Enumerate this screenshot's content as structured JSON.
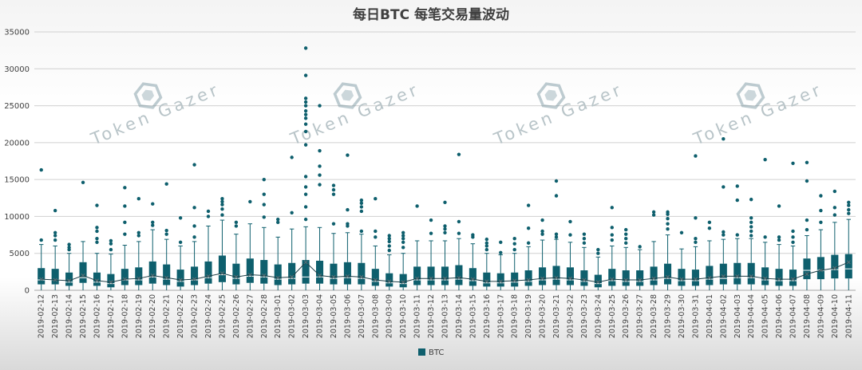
{
  "chart_data": {
    "type": "box",
    "title": "每日BTC 每笔交易量波动",
    "xlabel": "",
    "ylabel": "",
    "ylim": [
      0,
      35000
    ],
    "yticks": [
      0,
      5000,
      10000,
      15000,
      20000,
      25000,
      30000,
      35000
    ],
    "grid": "horizontal",
    "legend": {
      "position": "bottom",
      "entries": [
        "BTC"
      ]
    },
    "colors": {
      "series": "#0e5f6d",
      "gridline": "#d0d0d0",
      "text": "#404040",
      "watermark": "#b8c4c8"
    },
    "watermark": "Token Gazer",
    "series": [
      {
        "name": "BTC",
        "categories": [
          "2019-02-12",
          "2019-02-13",
          "2019-02-14",
          "2019-02-15",
          "2019-02-16",
          "2019-02-17",
          "2019-02-18",
          "2019-02-19",
          "2019-02-20",
          "2019-02-21",
          "2019-02-22",
          "2019-02-23",
          "2019-02-24",
          "2019-02-25",
          "2019-02-26",
          "2019-02-27",
          "2019-02-28",
          "2019-03-01",
          "2019-03-02",
          "2019-03-03",
          "2019-03-04",
          "2019-03-05",
          "2019-03-06",
          "2019-03-07",
          "2019-03-08",
          "2019-03-09",
          "2019-03-10",
          "2019-03-11",
          "2019-03-12",
          "2019-03-13",
          "2019-03-14",
          "2019-03-15",
          "2019-03-16",
          "2019-03-17",
          "2019-03-18",
          "2019-03-19",
          "2019-03-20",
          "2019-03-21",
          "2019-03-22",
          "2019-03-23",
          "2019-03-24",
          "2019-03-25",
          "2019-03-26",
          "2019-03-27",
          "2019-03-28",
          "2019-03-29",
          "2019-03-30",
          "2019-03-31",
          "2019-04-01",
          "2019-04-02",
          "2019-04-03",
          "2019-04-04",
          "2019-04-05",
          "2019-04-06",
          "2019-04-07",
          "2019-04-08",
          "2019-04-09",
          "2019-04-10",
          "2019-04-11"
        ],
        "boxes": [
          {
            "q1": 800,
            "median": 1400,
            "mean": 1500,
            "q3": 3000,
            "whisker_high": 6200,
            "outliers": [
              6800,
              16300
            ]
          },
          {
            "q1": 800,
            "median": 1400,
            "mean": 1400,
            "q3": 2900,
            "whisker_high": 6000,
            "outliers": [
              6800,
              7400,
              7800,
              10800
            ]
          },
          {
            "q1": 600,
            "median": 1100,
            "mean": 1300,
            "q3": 2400,
            "whisker_high": 5000,
            "outliers": [
              5500,
              5800,
              6200
            ]
          },
          {
            "q1": 1000,
            "median": 1700,
            "mean": 2000,
            "q3": 3800,
            "whisker_high": 6600,
            "outliers": [
              14600
            ]
          },
          {
            "q1": 600,
            "median": 1100,
            "mean": 1300,
            "q3": 2400,
            "whisker_high": 5000,
            "outliers": [
              6500,
              7000,
              8000,
              8500,
              11500
            ]
          },
          {
            "q1": 400,
            "median": 900,
            "mean": 1100,
            "q3": 2200,
            "whisker_high": 4900,
            "outliers": [
              5500,
              6300,
              6700
            ]
          },
          {
            "q1": 700,
            "median": 1400,
            "mean": 1500,
            "q3": 2900,
            "whisker_high": 6100,
            "outliers": [
              7600,
              9200,
              11400,
              13900
            ]
          },
          {
            "q1": 700,
            "median": 1400,
            "mean": 1600,
            "q3": 3100,
            "whisker_high": 6600,
            "outliers": [
              7400,
              7800,
              12400
            ]
          },
          {
            "q1": 900,
            "median": 1800,
            "mean": 2000,
            "q3": 3900,
            "whisker_high": 8200,
            "outliers": [
              8800,
              9200,
              11700
            ]
          },
          {
            "q1": 700,
            "median": 1500,
            "mean": 1700,
            "q3": 3500,
            "whisker_high": 6900,
            "outliers": [
              7600,
              8100,
              14400
            ]
          },
          {
            "q1": 500,
            "median": 1200,
            "mean": 1400,
            "q3": 2800,
            "whisker_high": 6000,
            "outliers": [
              6500,
              9800
            ]
          },
          {
            "q1": 700,
            "median": 1400,
            "mean": 1500,
            "q3": 3200,
            "whisker_high": 6600,
            "outliers": [
              7200,
              8700,
              11200,
              17000
            ]
          },
          {
            "q1": 900,
            "median": 1700,
            "mean": 1900,
            "q3": 3900,
            "whisker_high": 8700,
            "outliers": [
              10000,
              10700
            ]
          },
          {
            "q1": 1100,
            "median": 2100,
            "mean": 2300,
            "q3": 4700,
            "whisker_high": 9500,
            "outliers": [
              10200,
              11000,
              11600,
              12000,
              12400
            ]
          },
          {
            "q1": 800,
            "median": 1600,
            "mean": 1800,
            "q3": 3600,
            "whisker_high": 7600,
            "outliers": [
              8700,
              9200
            ]
          },
          {
            "q1": 1000,
            "median": 1900,
            "mean": 2100,
            "q3": 4300,
            "whisker_high": 9000,
            "outliers": [
              12000
            ]
          },
          {
            "q1": 900,
            "median": 1800,
            "mean": 2000,
            "q3": 4100,
            "whisker_high": 8500,
            "outliers": [
              9900,
              11600,
              13000,
              15000
            ]
          },
          {
            "q1": 700,
            "median": 1500,
            "mean": 1700,
            "q3": 3500,
            "whisker_high": 7200,
            "outliers": [
              9200,
              9600
            ]
          },
          {
            "q1": 800,
            "median": 1600,
            "mean": 1800,
            "q3": 3700,
            "whisker_high": 8300,
            "outliers": [
              10500,
              18000
            ]
          },
          {
            "q1": 900,
            "median": 1800,
            "mean": 3800,
            "q3": 4100,
            "whisker_high": 8600,
            "outliers": [
              9600,
              11300,
              13000,
              14000,
              15400,
              19700,
              21500,
              22500,
              23300,
              23800,
              24300,
              25000,
              25500,
              26000,
              29100,
              32800
            ]
          },
          {
            "q1": 900,
            "median": 1800,
            "mean": 2000,
            "q3": 4000,
            "whisker_high": 8500,
            "outliers": [
              14300,
              15600,
              16800,
              18900,
              25000
            ]
          },
          {
            "q1": 800,
            "median": 1600,
            "mean": 1800,
            "q3": 3600,
            "whisker_high": 7700,
            "outliers": [
              9000,
              13000,
              13600,
              14200
            ]
          },
          {
            "q1": 800,
            "median": 1700,
            "mean": 1900,
            "q3": 3800,
            "whisker_high": 7800,
            "outliers": [
              8700,
              9000,
              10900,
              18300
            ]
          },
          {
            "q1": 800,
            "median": 1600,
            "mean": 1800,
            "q3": 3700,
            "whisker_high": 7600,
            "outliers": [
              8000,
              10700,
              11300,
              11800,
              12200
            ]
          },
          {
            "q1": 600,
            "median": 1200,
            "mean": 1400,
            "q3": 2900,
            "whisker_high": 6000,
            "outliers": [
              7200,
              8000,
              12400
            ]
          },
          {
            "q1": 500,
            "median": 1000,
            "mean": 1200,
            "q3": 2300,
            "whisker_high": 4800,
            "outliers": [
              5400,
              6000,
              6600,
              7000,
              7400
            ]
          },
          {
            "q1": 400,
            "median": 900,
            "mean": 1100,
            "q3": 2200,
            "whisker_high": 5000,
            "outliers": [
              5800,
              6500,
              7000,
              7400,
              7800
            ]
          },
          {
            "q1": 700,
            "median": 1400,
            "mean": 1600,
            "q3": 3200,
            "whisker_high": 6700,
            "outliers": [
              11400
            ]
          },
          {
            "q1": 700,
            "median": 1400,
            "mean": 1600,
            "q3": 3200,
            "whisker_high": 6700,
            "outliers": [
              7700,
              9500
            ]
          },
          {
            "q1": 700,
            "median": 1400,
            "mean": 1600,
            "q3": 3200,
            "whisker_high": 6700,
            "outliers": [
              7800,
              8300,
              8700,
              11900
            ]
          },
          {
            "q1": 700,
            "median": 1500,
            "mean": 1700,
            "q3": 3400,
            "whisker_high": 7000,
            "outliers": [
              7700,
              9300,
              18400
            ]
          },
          {
            "q1": 600,
            "median": 1300,
            "mean": 1500,
            "q3": 3000,
            "whisker_high": 6300,
            "outliers": [
              7200,
              7500
            ]
          },
          {
            "q1": 500,
            "median": 1000,
            "mean": 1200,
            "q3": 2400,
            "whisker_high": 5000,
            "outliers": [
              5500,
              6000,
              6400,
              6900
            ]
          },
          {
            "q1": 500,
            "median": 1000,
            "mean": 1200,
            "q3": 2300,
            "whisker_high": 4800,
            "outliers": [
              5100,
              6500
            ]
          },
          {
            "q1": 500,
            "median": 1100,
            "mean": 1300,
            "q3": 2400,
            "whisker_high": 5000,
            "outliers": [
              5500,
              6300,
              7000
            ]
          },
          {
            "q1": 600,
            "median": 1200,
            "mean": 1400,
            "q3": 2700,
            "whisker_high": 5900,
            "outliers": [
              6400,
              8400,
              11500
            ]
          },
          {
            "q1": 700,
            "median": 1400,
            "mean": 1600,
            "q3": 3100,
            "whisker_high": 6800,
            "outliers": [
              7600,
              8000,
              9500
            ]
          },
          {
            "q1": 700,
            "median": 1500,
            "mean": 1700,
            "q3": 3300,
            "whisker_high": 6900,
            "outliers": [
              7200,
              7600,
              12800,
              14800
            ]
          },
          {
            "q1": 700,
            "median": 1400,
            "mean": 1600,
            "q3": 3100,
            "whisker_high": 6500,
            "outliers": [
              7500,
              9300
            ]
          },
          {
            "q1": 600,
            "median": 1200,
            "mean": 1400,
            "q3": 2700,
            "whisker_high": 5800,
            "outliers": [
              6400,
              7000,
              7600
            ]
          },
          {
            "q1": 400,
            "median": 900,
            "mean": 1100,
            "q3": 2100,
            "whisker_high": 4500,
            "outliers": [
              5000,
              5500
            ]
          },
          {
            "q1": 600,
            "median": 1300,
            "mean": 1500,
            "q3": 2900,
            "whisker_high": 6000,
            "outliers": [
              6800,
              7500,
              8500,
              11200
            ]
          },
          {
            "q1": 600,
            "median": 1200,
            "mean": 1400,
            "q3": 2700,
            "whisker_high": 5800,
            "outliers": [
              6400,
              7000,
              7600,
              8200
            ]
          },
          {
            "q1": 600,
            "median": 1200,
            "mean": 1400,
            "q3": 2700,
            "whisker_high": 5500,
            "outliers": [
              5900
            ]
          },
          {
            "q1": 700,
            "median": 1400,
            "mean": 1600,
            "q3": 3200,
            "whisker_high": 6600,
            "outliers": [
              10200,
              10600
            ]
          },
          {
            "q1": 800,
            "median": 1600,
            "mean": 1800,
            "q3": 3600,
            "whisker_high": 7500,
            "outliers": [
              8300,
              9000,
              9700,
              10300,
              10600
            ]
          },
          {
            "q1": 600,
            "median": 1300,
            "mean": 1500,
            "q3": 2900,
            "whisker_high": 5600,
            "outliers": [
              7800
            ]
          },
          {
            "q1": 600,
            "median": 1300,
            "mean": 1500,
            "q3": 2800,
            "whisker_high": 5900,
            "outliers": [
              6500,
              7000,
              9800,
              18200
            ]
          },
          {
            "q1": 700,
            "median": 1500,
            "mean": 1700,
            "q3": 3300,
            "whisker_high": 6700,
            "outliers": [
              8400,
              9200
            ]
          },
          {
            "q1": 800,
            "median": 1600,
            "mean": 1900,
            "q3": 3600,
            "whisker_high": 6900,
            "outliers": [
              7500,
              7900,
              14000,
              20500
            ]
          },
          {
            "q1": 800,
            "median": 1700,
            "mean": 1900,
            "q3": 3700,
            "whisker_high": 7000,
            "outliers": [
              7500,
              12200,
              14100
            ]
          },
          {
            "q1": 800,
            "median": 1700,
            "mean": 1900,
            "q3": 3700,
            "whisker_high": 7000,
            "outliers": [
              7400,
              8000,
              8600,
              9200,
              9800,
              12300
            ]
          },
          {
            "q1": 700,
            "median": 1400,
            "mean": 1600,
            "q3": 3100,
            "whisker_high": 6500,
            "outliers": [
              7200,
              17700
            ]
          },
          {
            "q1": 600,
            "median": 1300,
            "mean": 1500,
            "q3": 2900,
            "whisker_high": 6200,
            "outliers": [
              6800,
              7200,
              11400
            ]
          },
          {
            "q1": 600,
            "median": 1300,
            "mean": 1500,
            "q3": 2800,
            "whisker_high": 6000,
            "outliers": [
              6500,
              7200,
              8000,
              17200
            ]
          },
          {
            "q1": 1500,
            "median": 2700,
            "mean": 2200,
            "q3": 4300,
            "whisker_high": 7400,
            "outliers": [
              8200,
              9500,
              14800,
              17300
            ]
          },
          {
            "q1": 1500,
            "median": 2700,
            "mean": 2700,
            "q3": 4500,
            "whisker_high": 8200,
            "outliers": [
              9200,
              10800,
              12800
            ]
          },
          {
            "q1": 1600,
            "median": 2800,
            "mean": 3000,
            "q3": 4800,
            "whisker_high": 9200,
            "outliers": [
              10200,
              11200,
              13400
            ]
          },
          {
            "q1": 1600,
            "median": 2900,
            "mean": 3800,
            "q3": 4900,
            "whisker_high": 9600,
            "outliers": [
              10400,
              10900,
              11500,
              11900
            ]
          }
        ]
      }
    ]
  }
}
